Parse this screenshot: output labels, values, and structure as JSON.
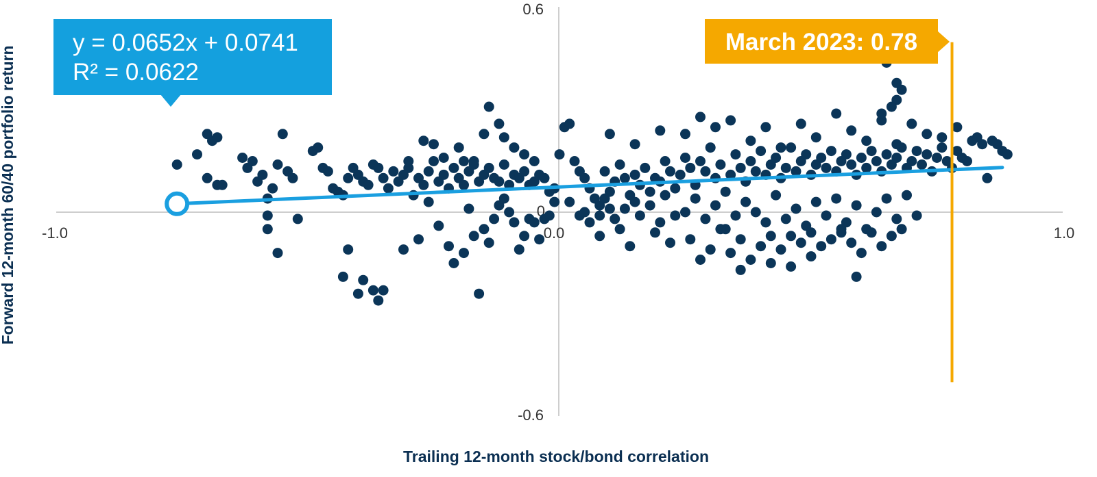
{
  "chart_data": {
    "type": "scatter",
    "xlabel": "Trailing 12-month stock/bond correlation",
    "ylabel": "Forward 12-month 60/40 portfolio return",
    "xlim": [
      -1.0,
      1.0
    ],
    "ylim": [
      -0.6,
      0.6
    ],
    "x_ticks": [
      "-1.0",
      "0.0",
      "1.0"
    ],
    "y_ticks": [
      "0.6",
      "0",
      "-0.6"
    ],
    "grid": false,
    "regression": {
      "equation": "y = 0.0652x + 0.0741",
      "r_squared": "R² = 0.0622",
      "slope": 0.0652,
      "intercept": 0.0741,
      "x_start": -0.76,
      "x_end": 0.88
    },
    "annotation": {
      "label": "March 2023: 0.78",
      "x": 0.78,
      "y_range": [
        -0.5,
        0.5
      ]
    },
    "colors": {
      "points": "#0b3558",
      "regression": "#1a9fe0",
      "equation_box": "#14a0de",
      "annotation": "#f5a800",
      "axes": "#bdbdbd"
    },
    "points": [
      [
        -0.76,
        0.14
      ],
      [
        -0.72,
        0.17
      ],
      [
        -0.7,
        0.23
      ],
      [
        -0.69,
        0.21
      ],
      [
        -0.68,
        0.22
      ],
      [
        -0.7,
        0.1
      ],
      [
        -0.68,
        0.08
      ],
      [
        -0.67,
        0.08
      ],
      [
        -0.63,
        0.16
      ],
      [
        -0.62,
        0.13
      ],
      [
        -0.61,
        0.15
      ],
      [
        -0.6,
        0.09
      ],
      [
        -0.59,
        0.11
      ],
      [
        -0.58,
        0.04
      ],
      [
        -0.57,
        0.07
      ],
      [
        -0.56,
        0.14
      ],
      [
        -0.55,
        0.23
      ],
      [
        -0.54,
        0.12
      ],
      [
        -0.53,
        0.1
      ],
      [
        -0.52,
        -0.02
      ],
      [
        -0.58,
        -0.01
      ],
      [
        -0.58,
        -0.05
      ],
      [
        -0.56,
        -0.12
      ],
      [
        -0.49,
        0.18
      ],
      [
        -0.48,
        0.19
      ],
      [
        -0.47,
        0.13
      ],
      [
        -0.46,
        0.12
      ],
      [
        -0.45,
        0.07
      ],
      [
        -0.44,
        0.06
      ],
      [
        -0.43,
        0.05
      ],
      [
        -0.42,
        0.1
      ],
      [
        -0.41,
        0.13
      ],
      [
        -0.4,
        0.11
      ],
      [
        -0.39,
        0.09
      ],
      [
        -0.38,
        0.08
      ],
      [
        -0.37,
        0.14
      ],
      [
        -0.36,
        0.13
      ],
      [
        -0.35,
        0.1
      ],
      [
        -0.34,
        0.07
      ],
      [
        -0.33,
        0.12
      ],
      [
        -0.32,
        0.09
      ],
      [
        -0.31,
        0.11
      ],
      [
        -0.3,
        0.13
      ],
      [
        -0.29,
        0.05
      ],
      [
        -0.28,
        0.1
      ],
      [
        -0.27,
        0.08
      ],
      [
        -0.26,
        0.12
      ],
      [
        -0.25,
        0.15
      ],
      [
        -0.24,
        0.09
      ],
      [
        -0.23,
        0.11
      ],
      [
        -0.22,
        0.07
      ],
      [
        -0.21,
        0.13
      ],
      [
        -0.2,
        0.1
      ],
      [
        -0.19,
        0.08
      ],
      [
        -0.18,
        0.12
      ],
      [
        -0.17,
        0.14
      ],
      [
        -0.16,
        0.09
      ],
      [
        -0.15,
        0.11
      ],
      [
        -0.14,
        0.13
      ],
      [
        -0.13,
        0.1
      ],
      [
        -0.12,
        0.09
      ],
      [
        -0.11,
        0.14
      ],
      [
        -0.1,
        0.08
      ],
      [
        -0.09,
        0.11
      ],
      [
        -0.08,
        0.1
      ],
      [
        -0.07,
        0.12
      ],
      [
        -0.06,
        0.08
      ],
      [
        -0.05,
        0.09
      ],
      [
        -0.04,
        0.11
      ],
      [
        -0.03,
        0.1
      ],
      [
        -0.02,
        0.06
      ],
      [
        -0.01,
        0.07
      ],
      [
        -0.42,
        -0.11
      ],
      [
        -0.43,
        -0.19
      ],
      [
        -0.4,
        -0.24
      ],
      [
        -0.39,
        -0.2
      ],
      [
        -0.37,
        -0.23
      ],
      [
        -0.36,
        -0.26
      ],
      [
        -0.35,
        -0.23
      ],
      [
        -0.31,
        -0.11
      ],
      [
        -0.28,
        -0.08
      ],
      [
        -0.26,
        0.03
      ],
      [
        -0.24,
        -0.04
      ],
      [
        -0.22,
        -0.1
      ],
      [
        -0.21,
        -0.15
      ],
      [
        -0.19,
        -0.12
      ],
      [
        -0.18,
        0.01
      ],
      [
        -0.17,
        -0.07
      ],
      [
        -0.16,
        -0.24
      ],
      [
        -0.15,
        -0.05
      ],
      [
        -0.14,
        -0.09
      ],
      [
        -0.13,
        -0.02
      ],
      [
        -0.12,
        0.02
      ],
      [
        -0.11,
        0.04
      ],
      [
        -0.1,
        0.0
      ],
      [
        -0.09,
        -0.03
      ],
      [
        -0.08,
        -0.11
      ],
      [
        -0.07,
        -0.07
      ],
      [
        -0.06,
        -0.02
      ],
      [
        -0.05,
        -0.03
      ],
      [
        -0.04,
        -0.08
      ],
      [
        -0.03,
        -0.02
      ],
      [
        -0.02,
        -0.01
      ],
      [
        -0.01,
        0.03
      ],
      [
        -0.3,
        0.15
      ],
      [
        -0.27,
        0.21
      ],
      [
        -0.25,
        0.2
      ],
      [
        -0.23,
        0.16
      ],
      [
        -0.2,
        0.19
      ],
      [
        -0.19,
        0.15
      ],
      [
        -0.17,
        0.15
      ],
      [
        -0.15,
        0.23
      ],
      [
        -0.14,
        0.31
      ],
      [
        -0.12,
        0.26
      ],
      [
        -0.11,
        0.22
      ],
      [
        -0.09,
        0.19
      ],
      [
        -0.07,
        0.17
      ],
      [
        -0.05,
        0.15
      ],
      [
        0.0,
        0.17
      ],
      [
        0.01,
        0.25
      ],
      [
        0.02,
        0.26
      ],
      [
        0.03,
        0.15
      ],
      [
        0.04,
        0.12
      ],
      [
        0.05,
        0.1
      ],
      [
        0.06,
        0.07
      ],
      [
        0.07,
        0.04
      ],
      [
        0.08,
        0.02
      ],
      [
        0.09,
        0.12
      ],
      [
        0.1,
        0.06
      ],
      [
        0.11,
        0.09
      ],
      [
        0.12,
        0.14
      ],
      [
        0.13,
        0.1
      ],
      [
        0.14,
        0.05
      ],
      [
        0.15,
        0.11
      ],
      [
        0.16,
        0.08
      ],
      [
        0.17,
        0.13
      ],
      [
        0.18,
        0.06
      ],
      [
        0.19,
        0.1
      ],
      [
        0.2,
        0.09
      ],
      [
        0.21,
        0.15
      ],
      [
        0.22,
        0.12
      ],
      [
        0.23,
        0.07
      ],
      [
        0.24,
        0.11
      ],
      [
        0.25,
        0.16
      ],
      [
        0.26,
        0.13
      ],
      [
        0.27,
        0.08
      ],
      [
        0.28,
        0.15
      ],
      [
        0.29,
        0.12
      ],
      [
        0.3,
        0.19
      ],
      [
        0.31,
        0.1
      ],
      [
        0.32,
        0.14
      ],
      [
        0.33,
        0.06
      ],
      [
        0.34,
        0.11
      ],
      [
        0.35,
        0.17
      ],
      [
        0.36,
        0.13
      ],
      [
        0.37,
        0.09
      ],
      [
        0.38,
        0.15
      ],
      [
        0.39,
        0.12
      ],
      [
        0.4,
        0.18
      ],
      [
        0.41,
        0.11
      ],
      [
        0.42,
        0.14
      ],
      [
        0.43,
        0.16
      ],
      [
        0.44,
        0.1
      ],
      [
        0.45,
        0.13
      ],
      [
        0.46,
        0.19
      ],
      [
        0.47,
        0.12
      ],
      [
        0.48,
        0.15
      ],
      [
        0.49,
        0.17
      ],
      [
        0.5,
        0.11
      ],
      [
        0.51,
        0.14
      ],
      [
        0.52,
        0.16
      ],
      [
        0.53,
        0.13
      ],
      [
        0.54,
        0.18
      ],
      [
        0.55,
        0.12
      ],
      [
        0.56,
        0.15
      ],
      [
        0.57,
        0.17
      ],
      [
        0.58,
        0.14
      ],
      [
        0.59,
        0.11
      ],
      [
        0.6,
        0.16
      ],
      [
        0.61,
        0.13
      ],
      [
        0.62,
        0.18
      ],
      [
        0.63,
        0.15
      ],
      [
        0.64,
        0.12
      ],
      [
        0.65,
        0.17
      ],
      [
        0.66,
        0.14
      ],
      [
        0.67,
        0.16
      ],
      [
        0.68,
        0.19
      ],
      [
        0.69,
        0.13
      ],
      [
        0.7,
        0.15
      ],
      [
        0.71,
        0.18
      ],
      [
        0.72,
        0.14
      ],
      [
        0.73,
        0.17
      ],
      [
        0.74,
        0.12
      ],
      [
        0.75,
        0.16
      ],
      [
        0.76,
        0.19
      ],
      [
        0.77,
        0.15
      ],
      [
        0.78,
        0.13
      ],
      [
        0.79,
        0.18
      ],
      [
        0.8,
        0.16
      ],
      [
        0.81,
        0.15
      ],
      [
        0.82,
        0.21
      ],
      [
        0.84,
        0.2
      ],
      [
        0.85,
        0.1
      ],
      [
        0.87,
        0.2
      ],
      [
        0.88,
        0.18
      ],
      [
        0.89,
        0.17
      ],
      [
        0.02,
        0.03
      ],
      [
        0.04,
        -0.01
      ],
      [
        0.05,
        0.0
      ],
      [
        0.06,
        -0.03
      ],
      [
        0.08,
        -0.01
      ],
      [
        0.09,
        0.04
      ],
      [
        0.1,
        0.01
      ],
      [
        0.11,
        -0.02
      ],
      [
        0.12,
        -0.05
      ],
      [
        0.13,
        0.01
      ],
      [
        0.15,
        0.03
      ],
      [
        0.16,
        -0.01
      ],
      [
        0.18,
        0.02
      ],
      [
        0.2,
        -0.03
      ],
      [
        0.21,
        0.05
      ],
      [
        0.23,
        -0.01
      ],
      [
        0.25,
        0.0
      ],
      [
        0.27,
        0.04
      ],
      [
        0.29,
        -0.02
      ],
      [
        0.31,
        0.02
      ],
      [
        0.33,
        -0.05
      ],
      [
        0.35,
        -0.01
      ],
      [
        0.37,
        0.03
      ],
      [
        0.39,
        0.0
      ],
      [
        0.41,
        -0.03
      ],
      [
        0.43,
        0.05
      ],
      [
        0.45,
        -0.02
      ],
      [
        0.47,
        0.01
      ],
      [
        0.49,
        -0.04
      ],
      [
        0.51,
        0.03
      ],
      [
        0.53,
        -0.01
      ],
      [
        0.55,
        0.04
      ],
      [
        0.57,
        -0.03
      ],
      [
        0.59,
        0.02
      ],
      [
        0.61,
        -0.05
      ],
      [
        0.63,
        0.0
      ],
      [
        0.65,
        0.04
      ],
      [
        0.67,
        -0.02
      ],
      [
        0.69,
        0.05
      ],
      [
        0.71,
        -0.01
      ],
      [
        0.08,
        -0.07
      ],
      [
        0.14,
        -0.1
      ],
      [
        0.19,
        -0.06
      ],
      [
        0.22,
        -0.09
      ],
      [
        0.26,
        -0.08
      ],
      [
        0.28,
        -0.14
      ],
      [
        0.3,
        -0.11
      ],
      [
        0.32,
        -0.05
      ],
      [
        0.34,
        -0.12
      ],
      [
        0.36,
        -0.08
      ],
      [
        0.38,
        -0.14
      ],
      [
        0.4,
        -0.1
      ],
      [
        0.42,
        -0.07
      ],
      [
        0.44,
        -0.11
      ],
      [
        0.46,
        -0.07
      ],
      [
        0.48,
        -0.09
      ],
      [
        0.5,
        -0.06
      ],
      [
        0.52,
        -0.1
      ],
      [
        0.54,
        -0.08
      ],
      [
        0.56,
        -0.05
      ],
      [
        0.58,
        -0.09
      ],
      [
        0.6,
        -0.12
      ],
      [
        0.62,
        -0.06
      ],
      [
        0.64,
        -0.1
      ],
      [
        0.66,
        -0.07
      ],
      [
        0.68,
        -0.05
      ],
      [
        0.36,
        -0.17
      ],
      [
        0.42,
        -0.15
      ],
      [
        0.46,
        -0.16
      ],
      [
        0.5,
        -0.13
      ],
      [
        0.59,
        -0.19
      ],
      [
        0.56,
        -0.06
      ],
      [
        0.1,
        0.23
      ],
      [
        0.15,
        0.2
      ],
      [
        0.2,
        0.24
      ],
      [
        0.25,
        0.23
      ],
      [
        0.28,
        0.28
      ],
      [
        0.31,
        0.25
      ],
      [
        0.34,
        0.27
      ],
      [
        0.38,
        0.21
      ],
      [
        0.41,
        0.25
      ],
      [
        0.44,
        0.19
      ],
      [
        0.48,
        0.26
      ],
      [
        0.51,
        0.22
      ],
      [
        0.55,
        0.29
      ],
      [
        0.58,
        0.24
      ],
      [
        0.61,
        0.21
      ],
      [
        0.64,
        0.27
      ],
      [
        0.67,
        0.2
      ],
      [
        0.7,
        0.26
      ],
      [
        0.73,
        0.23
      ],
      [
        0.76,
        0.22
      ],
      [
        0.79,
        0.25
      ],
      [
        0.83,
        0.22
      ],
      [
        0.86,
        0.21
      ],
      [
        0.65,
        0.44
      ],
      [
        0.67,
        0.38
      ],
      [
        0.68,
        0.36
      ],
      [
        0.67,
        0.33
      ],
      [
        0.66,
        0.31
      ],
      [
        0.64,
        0.29
      ]
    ]
  }
}
